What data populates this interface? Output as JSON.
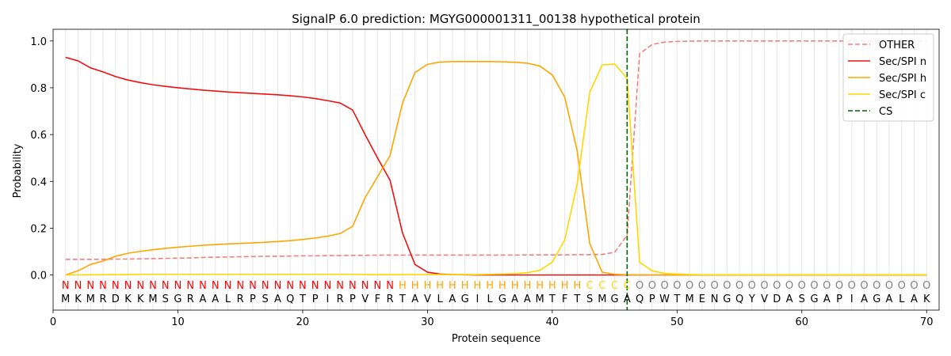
{
  "chart_data": {
    "type": "line",
    "title": "SignalP 6.0 prediction: MGYG000001311_00138 hypothetical protein",
    "xlabel": "Protein sequence",
    "ylabel": "Probability",
    "xlim": [
      0,
      71
    ],
    "ylim": [
      -0.15,
      1.05
    ],
    "xticks": [
      0,
      10,
      20,
      30,
      40,
      50,
      60,
      70
    ],
    "yticks": [
      0.0,
      0.2,
      0.4,
      0.6,
      0.8,
      1.0
    ],
    "ytick_labels": [
      "0.0",
      "0.2",
      "0.4",
      "0.6",
      "0.8",
      "1.0"
    ],
    "legend_position": "top-right",
    "cleavage_site": 46,
    "sequence": "MKMRDKKMSGRAALRPSAQTPIRPVFRTAVLAGILGAAMTFTSMGAQPWTMENGQYVDASGAPIAGALAK",
    "labels": "NNNNNNNNNNNNNNNNNNNNNNNNNNNHHHHHHHHHHHHHHHCCCCOOOOOOOOOOOOOOOOOOOOOOOO",
    "label_colors": {
      "N": "#ff0000",
      "H": "#ffa500",
      "C": "#ffd700",
      "O": "#808080"
    },
    "series": [
      {
        "name": "OTHER",
        "color": "#f08080",
        "dashed": true,
        "values": [
          0.067,
          0.067,
          0.067,
          0.067,
          0.068,
          0.068,
          0.069,
          0.07,
          0.071,
          0.072,
          0.073,
          0.075,
          0.076,
          0.077,
          0.078,
          0.079,
          0.08,
          0.08,
          0.081,
          0.082,
          0.082,
          0.083,
          0.083,
          0.084,
          0.084,
          0.085,
          0.085,
          0.085,
          0.085,
          0.085,
          0.085,
          0.085,
          0.085,
          0.085,
          0.085,
          0.085,
          0.085,
          0.086,
          0.086,
          0.086,
          0.086,
          0.087,
          0.087,
          0.088,
          0.097,
          0.17,
          0.945,
          0.985,
          0.995,
          0.998,
          0.999,
          1.0,
          1.0,
          1.0,
          1.0,
          1.0,
          1.0,
          1.0,
          1.0,
          1.0,
          1.0,
          1.0,
          1.0,
          1.0,
          1.0,
          1.0,
          1.0,
          1.0,
          1.0,
          1.0
        ]
      },
      {
        "name": "Sec/SPI n",
        "color": "#ee1111",
        "dashed": false,
        "values": [
          0.93,
          0.915,
          0.885,
          0.868,
          0.848,
          0.833,
          0.822,
          0.813,
          0.806,
          0.8,
          0.795,
          0.79,
          0.786,
          0.782,
          0.779,
          0.776,
          0.773,
          0.77,
          0.766,
          0.761,
          0.754,
          0.745,
          0.735,
          0.705,
          0.6,
          0.5,
          0.405,
          0.18,
          0.045,
          0.012,
          0.004,
          0.002,
          0.001,
          0.0,
          0.0,
          0.0,
          0.0,
          0.0,
          0.0,
          0.0,
          0.0,
          0.0,
          0.0,
          0.0,
          0.0,
          0.0,
          0.0,
          0.0,
          0.0,
          0.0,
          0.0,
          0.0,
          0.0,
          0.0,
          0.0,
          0.0,
          0.0,
          0.0,
          0.0,
          0.0,
          0.0,
          0.0,
          0.0,
          0.0,
          0.0,
          0.0,
          0.0,
          0.0,
          0.0,
          0.0
        ]
      },
      {
        "name": "Sec/SPI h",
        "color": "#ffa500",
        "dashed": false,
        "values": [
          0.0,
          0.018,
          0.045,
          0.06,
          0.08,
          0.093,
          0.101,
          0.108,
          0.114,
          0.119,
          0.123,
          0.127,
          0.13,
          0.133,
          0.135,
          0.137,
          0.14,
          0.143,
          0.147,
          0.152,
          0.158,
          0.166,
          0.177,
          0.208,
          0.33,
          0.42,
          0.51,
          0.735,
          0.865,
          0.9,
          0.91,
          0.912,
          0.912,
          0.912,
          0.912,
          0.911,
          0.909,
          0.905,
          0.893,
          0.855,
          0.76,
          0.53,
          0.135,
          0.012,
          0.003,
          0.001,
          0.0,
          0.0,
          0.0,
          0.0,
          0.0,
          0.0,
          0.0,
          0.0,
          0.0,
          0.0,
          0.0,
          0.0,
          0.0,
          0.0,
          0.0,
          0.0,
          0.0,
          0.0,
          0.0,
          0.0,
          0.0,
          0.0,
          0.0,
          0.0
        ]
      },
      {
        "name": "Sec/SPI c",
        "color": "#ffd700",
        "dashed": false,
        "values": [
          0.0,
          0.0,
          0.001,
          0.001,
          0.002,
          0.002,
          0.003,
          0.003,
          0.003,
          0.003,
          0.003,
          0.003,
          0.003,
          0.003,
          0.003,
          0.003,
          0.003,
          0.003,
          0.003,
          0.003,
          0.003,
          0.003,
          0.003,
          0.003,
          0.002,
          0.002,
          0.002,
          0.002,
          0.002,
          0.002,
          0.002,
          0.002,
          0.002,
          0.002,
          0.003,
          0.004,
          0.006,
          0.01,
          0.02,
          0.055,
          0.15,
          0.39,
          0.78,
          0.897,
          0.902,
          0.84,
          0.055,
          0.018,
          0.007,
          0.004,
          0.002,
          0.001,
          0.001,
          0.001,
          0.001,
          0.001,
          0.001,
          0.001,
          0.001,
          0.001,
          0.001,
          0.001,
          0.001,
          0.001,
          0.001,
          0.001,
          0.001,
          0.001,
          0.001,
          0.001
        ]
      },
      {
        "name": "CS",
        "color": "#006400",
        "dashed": true,
        "is_vertical_marker": true
      }
    ]
  }
}
